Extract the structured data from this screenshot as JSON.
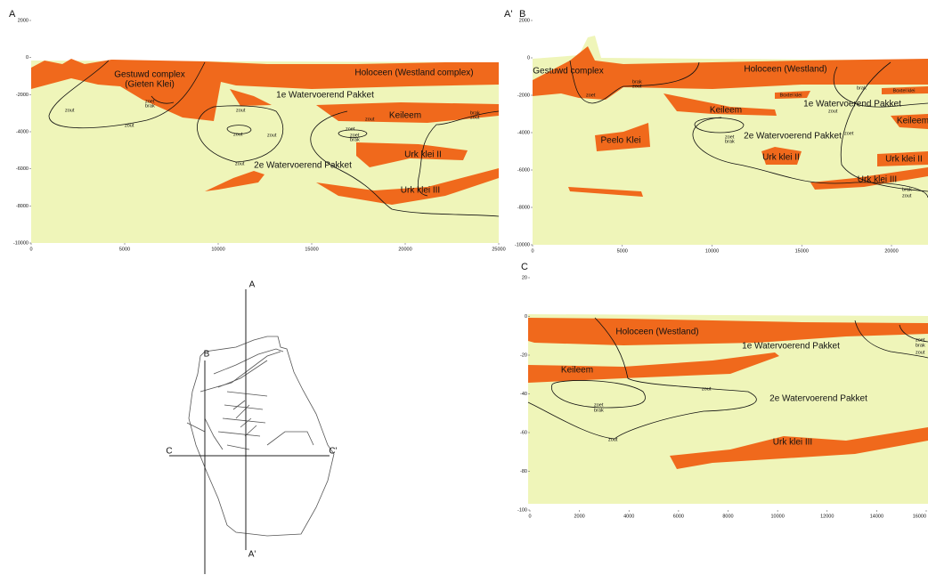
{
  "panels": [
    {
      "titles": [
        "A"
      ],
      "yticks": [
        2000,
        0,
        -2000,
        -4000,
        -6000,
        -8000,
        -10000
      ],
      "xticks": [
        0,
        5000,
        10000,
        15000,
        20000,
        25000
      ],
      "labels": [
        "Gestuwd complex",
        "(Gieten Klei)",
        "Holoceen (Westland complex)",
        "1e Watervoerend Pakket",
        "Keileem",
        "Urk klei II",
        "2e Watervoerend Pakket",
        "Urk klei III"
      ],
      "notes": [
        "zout",
        "zoet",
        "brak",
        "zout",
        "zout",
        "zout",
        "zout",
        "brak",
        "zout",
        "zoet",
        "brak",
        "zout",
        "zoet",
        "zout"
      ]
    },
    {
      "titles": [
        "A'",
        "B"
      ],
      "yticks": [
        2000,
        0,
        -2000,
        -4000,
        -6000,
        -8000,
        -10000
      ],
      "xticks": [
        0,
        5000,
        10000,
        15000,
        20000
      ],
      "labels": [
        "Gestuwd complex",
        "Holoceen (Westland)",
        "Boxtel klei",
        "Boxtel klei",
        "1e Watervoerend Pakket",
        "Keileem",
        "Keileem",
        "Peelo Klei",
        "2e Watervoerend Pakket",
        "Urk klei II",
        "Urk klei II",
        "Urk klei III"
      ],
      "notes": [
        "zoet",
        "brak",
        "zout",
        "brak",
        "zoet",
        "brak",
        "zoet",
        "brak",
        "zout",
        "zout"
      ]
    },
    {
      "titles": [
        "C"
      ],
      "yticks": [
        20,
        0,
        -20,
        -40,
        -60,
        -80,
        -100
      ],
      "xticks": [
        0,
        2000,
        4000,
        6000,
        8000,
        10000,
        12000,
        14000,
        16000
      ],
      "labels": [
        "Holoceen (Westland)",
        "1e Watervoerend Pakket",
        "Keileem",
        "2e Watervoerend Pakket",
        "Urk klei III"
      ],
      "notes": [
        "zoet",
        "brak",
        "zout",
        "zout",
        "zoet",
        "brak",
        "zout"
      ]
    }
  ],
  "map": {
    "labels": [
      "A",
      "A'",
      "B",
      "C",
      "C'"
    ]
  }
}
